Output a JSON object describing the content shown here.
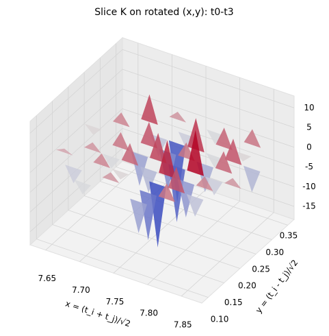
{
  "chart_data": {
    "type": "surface3d",
    "title": "Slice K on rotated (x,y): t0-t3",
    "xlabel": "x = (t_i + t_j)/√2",
    "ylabel": "y = (t_i - t_j)/√2",
    "colormap": "coolwarm",
    "x": [
      7.64,
      7.6675,
      7.695,
      7.7225,
      7.75,
      7.7775,
      7.805,
      7.8325,
      7.86
    ],
    "y": [
      0.1,
      0.13,
      0.16,
      0.19,
      0.22,
      0.25,
      0.28,
      0.31,
      0.34
    ],
    "z": [
      [
        null,
        null,
        -3,
        null,
        null,
        -8,
        null,
        null,
        null
      ],
      [
        null,
        -4,
        null,
        2,
        null,
        -12,
        4,
        null,
        null
      ],
      [
        1,
        null,
        3,
        -2,
        null,
        -16,
        6,
        -5,
        null
      ],
      [
        null,
        2,
        -3,
        5,
        -6,
        9,
        -9,
        3,
        null
      ],
      [
        null,
        null,
        4,
        -8,
        7,
        -14,
        11,
        -4,
        2
      ],
      [
        -2,
        null,
        null,
        6,
        -10,
        4,
        -7,
        5,
        null
      ],
      [
        null,
        3,
        null,
        -5,
        -15,
        8,
        -3,
        6,
        -6
      ],
      [
        null,
        null,
        7,
        null,
        -4,
        null,
        5,
        -2,
        null
      ],
      [
        null,
        null,
        null,
        2,
        null,
        -3,
        null,
        4,
        null
      ]
    ],
    "xlim": [
      7.627,
      7.88
    ],
    "ylim": [
      0.08,
      0.37
    ],
    "zlim": [
      -18.3,
      13
    ],
    "xticks": [
      7.65,
      {
        "value": 7.7,
        "label": "7.70"
      },
      7.75,
      {
        "value": 7.8,
        "label": "7.80"
      },
      7.85
    ],
    "yticks": [
      {
        "value": 0.1,
        "label": "0.10"
      },
      0.15,
      {
        "value": 0.2,
        "label": "0.20"
      },
      0.25,
      {
        "value": 0.3,
        "label": "0.30"
      },
      0.35
    ],
    "zticks": [
      -15,
      -10,
      -5,
      0,
      5,
      10
    ],
    "grid": true
  }
}
